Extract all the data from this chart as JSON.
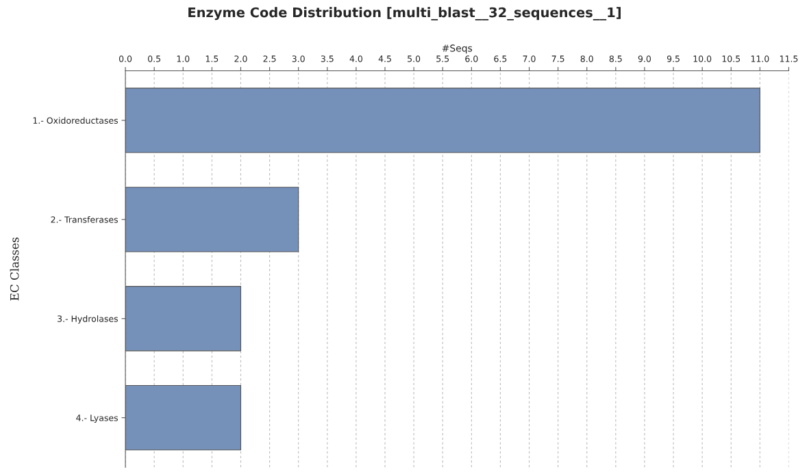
{
  "chart_data": {
    "type": "bar",
    "title": "Enzyme Code Distribution [multi_blast__32_sequences__1]",
    "xlabel": "#Seqs",
    "ylabel": "EC Classes",
    "orientation": "horizontal",
    "categories": [
      "1.- Oxidoreductases",
      "2.- Transferases",
      "3.- Hydrolases",
      "4.- Lyases"
    ],
    "values": [
      11,
      3,
      2,
      2
    ],
    "color": "#7591ba",
    "xlim": [
      0,
      11.5
    ],
    "xticks": [
      {
        "value": 0,
        "label": "0.0"
      },
      {
        "value": 0.5,
        "label": "0.5"
      },
      {
        "value": 1,
        "label": "1.0"
      },
      {
        "value": 1.5,
        "label": "1.5"
      },
      {
        "value": 2,
        "label": "2.0"
      },
      {
        "value": 2.5,
        "label": "2.5"
      },
      {
        "value": 3,
        "label": "3.0"
      },
      {
        "value": 3.5,
        "label": "3.5"
      },
      {
        "value": 4,
        "label": "4.0"
      },
      {
        "value": 4.5,
        "label": "4.5"
      },
      {
        "value": 5,
        "label": "5.0"
      },
      {
        "value": 5.5,
        "label": "5.5"
      },
      {
        "value": 6,
        "label": "6.0"
      },
      {
        "value": 6.5,
        "label": "6.5"
      },
      {
        "value": 7,
        "label": "7.0"
      },
      {
        "value": 7.5,
        "label": "7.5"
      },
      {
        "value": 8,
        "label": "8.0"
      },
      {
        "value": 8.5,
        "label": "8.5"
      },
      {
        "value": 9,
        "label": "9.0"
      },
      {
        "value": 9.5,
        "label": "9.5"
      },
      {
        "value": 10,
        "label": "10.0"
      },
      {
        "value": 10.5,
        "label": "10.5"
      },
      {
        "value": 11,
        "label": "11.0"
      },
      {
        "value": 11.5,
        "label": "11.5"
      }
    ],
    "grid": "x"
  }
}
